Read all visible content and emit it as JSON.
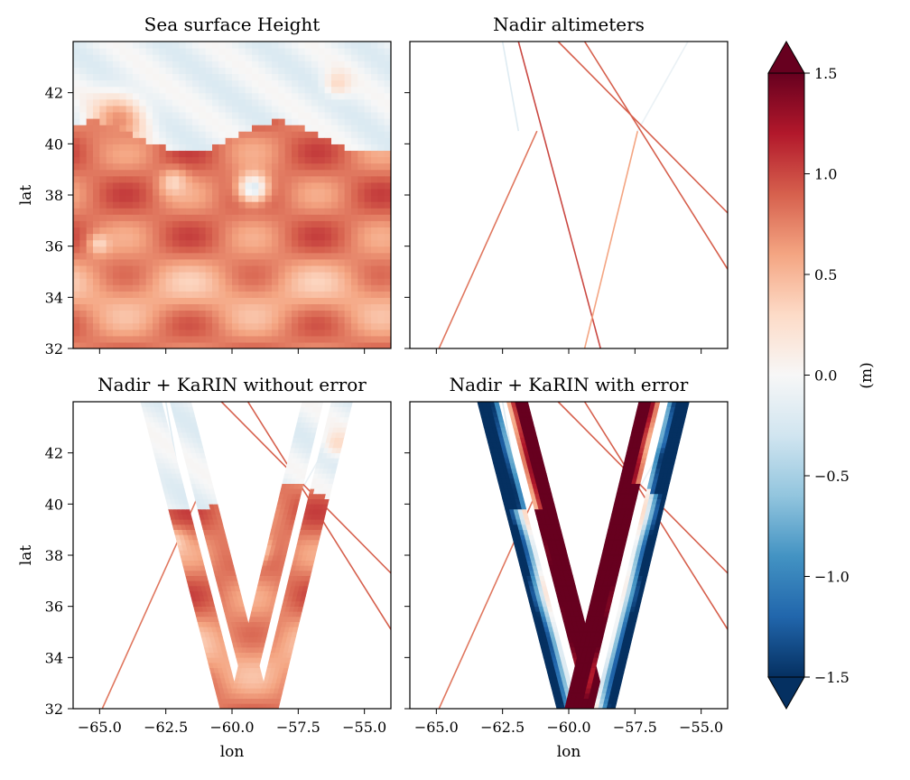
{
  "chart_data": {
    "type": "heatmap",
    "colorbar": {
      "label": "(m)",
      "vmin": -1.5,
      "vmax": 1.5,
      "ticks": [
        1.5,
        1.0,
        0.5,
        0.0,
        -0.5,
        -1.0,
        -1.5
      ],
      "tick_labels": [
        "1.5",
        "1.0",
        "0.5",
        "0.0",
        "−0.5",
        "−1.0",
        "−1.5"
      ],
      "extend": "both",
      "colormap": "RdBu_r",
      "stops": [
        "#053061",
        "#2166ac",
        "#4393c3",
        "#92c5de",
        "#d1e5f0",
        "#f7f7f7",
        "#fddbc7",
        "#f4a582",
        "#d6604d",
        "#b2182b",
        "#67001f"
      ]
    },
    "xlim": [
      -66,
      -54
    ],
    "ylim": [
      32,
      44
    ],
    "xticks": [
      -65.0,
      -62.5,
      -60.0,
      -57.5,
      -55.0
    ],
    "xtick_labels": [
      "−65.0",
      "−62.5",
      "−60.0",
      "−57.5",
      "−55.0"
    ],
    "yticks": [
      32,
      34,
      36,
      38,
      40,
      42
    ],
    "ytick_labels": [
      "32",
      "34",
      "36",
      "38",
      "40",
      "42"
    ],
    "xlabel": "lon",
    "ylabel": "lat",
    "panels": [
      {
        "title": "Sea surface Height",
        "kind": "full_field",
        "show_xticklabels": false,
        "show_yticklabels": true,
        "show_xlabel": false,
        "show_ylabel": true
      },
      {
        "title": "Nadir altimeters",
        "kind": "nadir",
        "show_xticklabels": false,
        "show_yticklabels": false,
        "show_xlabel": false,
        "show_ylabel": false
      },
      {
        "title": "Nadir + KaRIN without error",
        "kind": "nadir_karin",
        "show_xticklabels": true,
        "show_yticklabels": true,
        "show_xlabel": true,
        "show_ylabel": true
      },
      {
        "title": "Nadir + KaRIN with error",
        "kind": "nadir_karin_error",
        "show_xticklabels": true,
        "show_yticklabels": false,
        "show_xlabel": true,
        "show_ylabel": false
      }
    ],
    "nadir_tracks": [
      {
        "from": [
          -64.9,
          32.0
        ],
        "to": [
          -61.2,
          40.5
        ],
        "value": 0.8
      },
      {
        "from": [
          -58.8,
          32.0
        ],
        "to": [
          -61.9,
          44.0
        ],
        "value": 1.0
      },
      {
        "from": [
          -59.4,
          32.0
        ],
        "to": [
          -57.4,
          40.5
        ],
        "value": 0.6
      },
      {
        "from": [
          -57.4,
          40.5
        ],
        "to": [
          -55.5,
          44.0
        ],
        "value": -0.1
      },
      {
        "from": [
          -62.5,
          44.0
        ],
        "to": [
          -61.9,
          40.5
        ],
        "value": -0.2
      },
      {
        "from": [
          -60.4,
          44.0
        ],
        "to": [
          -54.0,
          37.3
        ],
        "value": 0.9
      },
      {
        "from": [
          -59.4,
          44.0
        ],
        "to": [
          -54.0,
          35.1
        ],
        "value": 0.9
      }
    ],
    "karin_swaths": [
      {
        "from": [
          -59.5,
          32.0
        ],
        "to": [
          -62.5,
          44.0
        ],
        "half_width_lon": 0.95
      },
      {
        "from": [
          -59.2,
          32.0
        ],
        "to": [
          -56.4,
          44.0
        ],
        "half_width_lon": 0.95
      }
    ],
    "field_features": [
      {
        "lon": -62.2,
        "lat": 38.5,
        "radius": 0.5,
        "value": 0.3
      },
      {
        "lon": -59.2,
        "lat": 38.3,
        "radius": 0.6,
        "value": -0.2
      },
      {
        "lon": -65.0,
        "lat": 36.1,
        "radius": 0.4,
        "value": 0.3
      },
      {
        "lon": -64.3,
        "lat": 40.9,
        "radius": 1.0,
        "value": 0.7
      },
      {
        "lon": -56.0,
        "lat": 42.4,
        "radius": 0.5,
        "value": 0.3
      }
    ]
  }
}
